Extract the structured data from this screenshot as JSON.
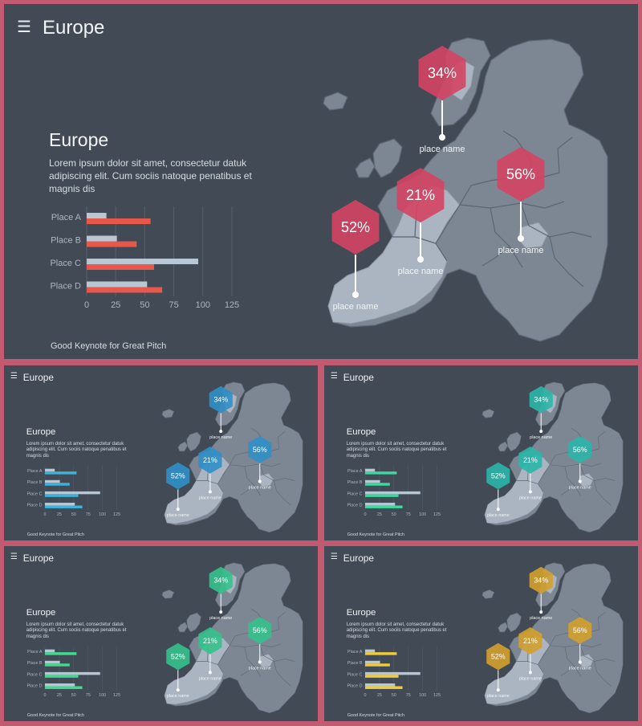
{
  "title": "Europe",
  "heading": "Europe",
  "body": "Lorem ipsum dolor sit amet, consectetur datuk adipiscing elit. Cum sociis natoque penatibus et magnis dis",
  "footer": "Good Keynote for Great Pitch",
  "menu_icon": "hamburger-menu-icon",
  "map_icon": "europe-map-icon",
  "markers": [
    {
      "value": "34%",
      "label": "place name"
    },
    {
      "value": "21%",
      "label": "place name"
    },
    {
      "value": "56%",
      "label": "place name"
    },
    {
      "value": "52%",
      "label": "place name"
    }
  ],
  "colors": {
    "background": "#c25a72",
    "slide": "#414a55",
    "map_land": "#7d8793",
    "map_highlight": "#aab5c1",
    "bar_primary": "#b9c6d4"
  },
  "variants": [
    {
      "accent": "#d44463",
      "bar2": "#e8584a"
    },
    {
      "accent": "#2f8fc8",
      "bar2": "#3fb2dc"
    },
    {
      "accent": "#2bb6a8",
      "bar2": "#3fd7a0"
    },
    {
      "accent": "#35c18c",
      "bar2": "#43d98e"
    },
    {
      "accent": "#d4a02e",
      "bar2": "#f0cc3a"
    }
  ],
  "chart_data": {
    "type": "bar",
    "categories": [
      "Place A",
      "Place B",
      "Place C",
      "Place D"
    ],
    "series": [
      {
        "values": [
          17,
          26,
          96,
          52
        ]
      },
      {
        "values": [
          55,
          43,
          58,
          65
        ]
      }
    ],
    "xticks": [
      0,
      25,
      50,
      75,
      100,
      125
    ],
    "xlim": [
      0,
      125
    ],
    "orientation": "horizontal",
    "grid": true
  }
}
